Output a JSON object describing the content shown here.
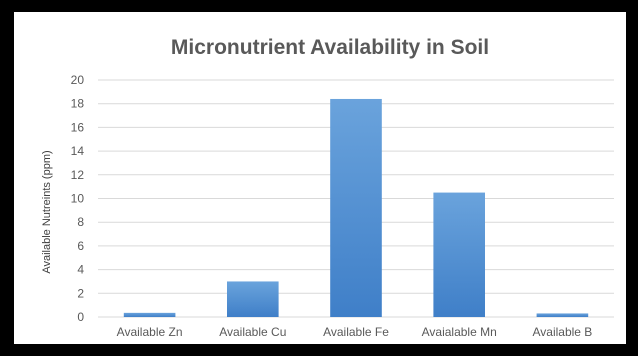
{
  "chart_data": {
    "type": "bar",
    "title": "Micronutrient Availability in Soil",
    "xlabel": "",
    "ylabel": "Available Nutreints (ppm)",
    "categories": [
      "Available Zn",
      "Available Cu",
      "Available Fe",
      "Avaialable Mn",
      "Available B"
    ],
    "values": [
      0.35,
      3.0,
      18.4,
      10.5,
      0.3
    ],
    "ylim": [
      0,
      20
    ],
    "yticks": [
      0,
      2,
      4,
      6,
      8,
      10,
      12,
      14,
      16,
      18,
      20
    ],
    "grid": true,
    "legend": "none",
    "colors": {
      "bar_top": "#6aa3dc",
      "bar_bottom": "#3f7fc8",
      "gridline": "#d9d9d9",
      "text": "#595959",
      "frame": "#000000",
      "background": "#ffffff"
    }
  }
}
